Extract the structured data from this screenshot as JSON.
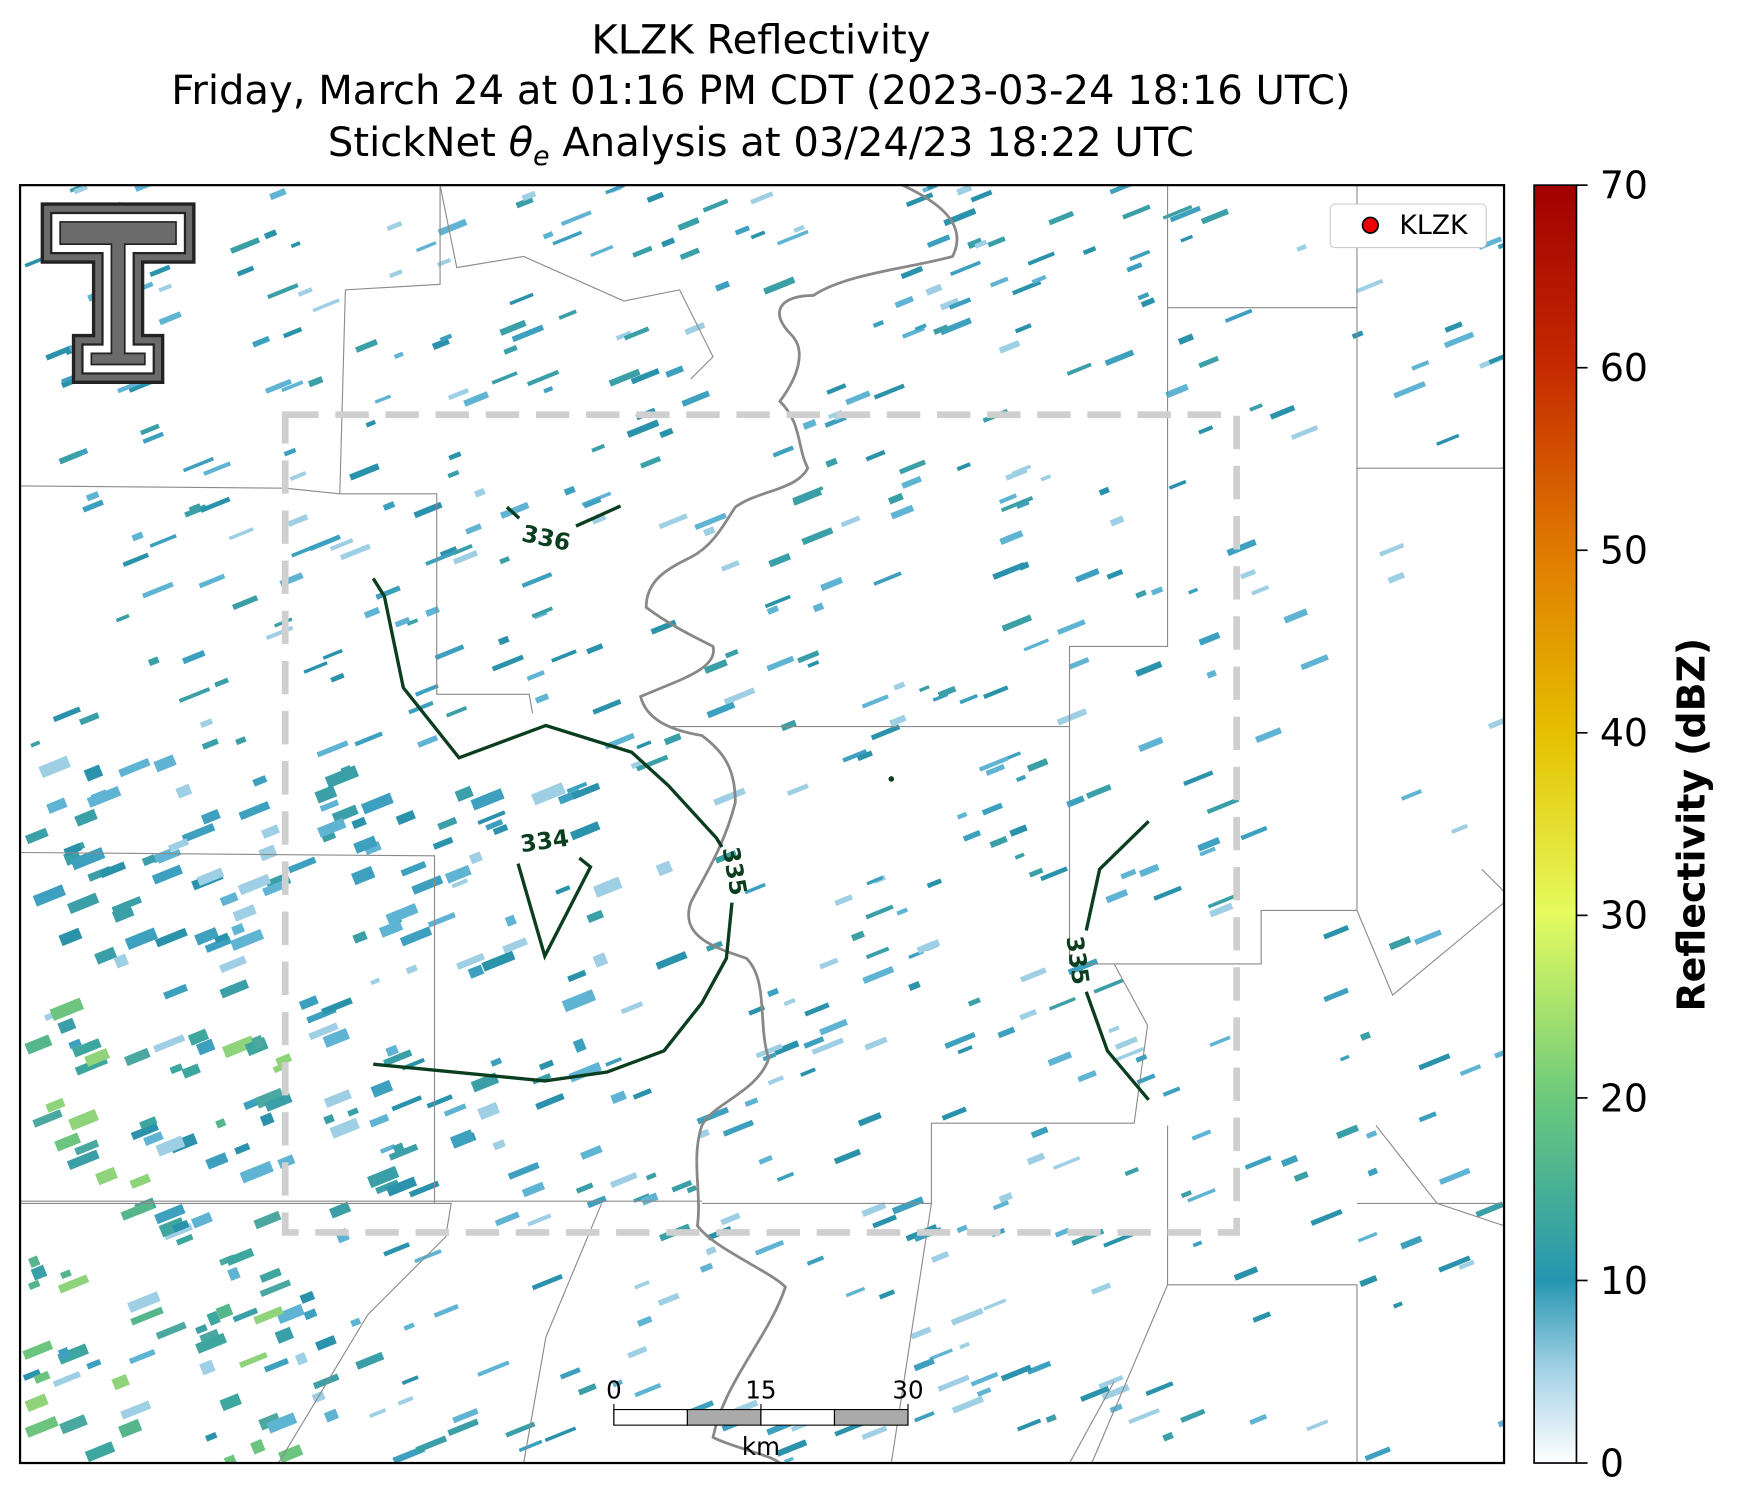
{
  "title_lines": [
    "KLZK Reflectivity",
    "Friday, March 24 at 01:16 PM CDT (2023-03-24 18:16 UTC)",
    {
      "before": "StickNet ",
      "symbol": "θ",
      "subscript": "e",
      "after": " Analysis at 03/24/23 18:22 UTC"
    }
  ],
  "legend": {
    "label": "KLZK"
  },
  "contour_labels": [
    "336",
    "334",
    "335",
    "335"
  ],
  "colorbar": {
    "label": "Reflectivity (dBZ)",
    "lim": [
      0,
      70
    ],
    "ticks": [
      0,
      10,
      20,
      30,
      40,
      50,
      60,
      70
    ]
  },
  "scale_bar": {
    "lim": [
      0,
      30
    ],
    "ticks": [
      0,
      15,
      30
    ],
    "unit": "km"
  }
}
